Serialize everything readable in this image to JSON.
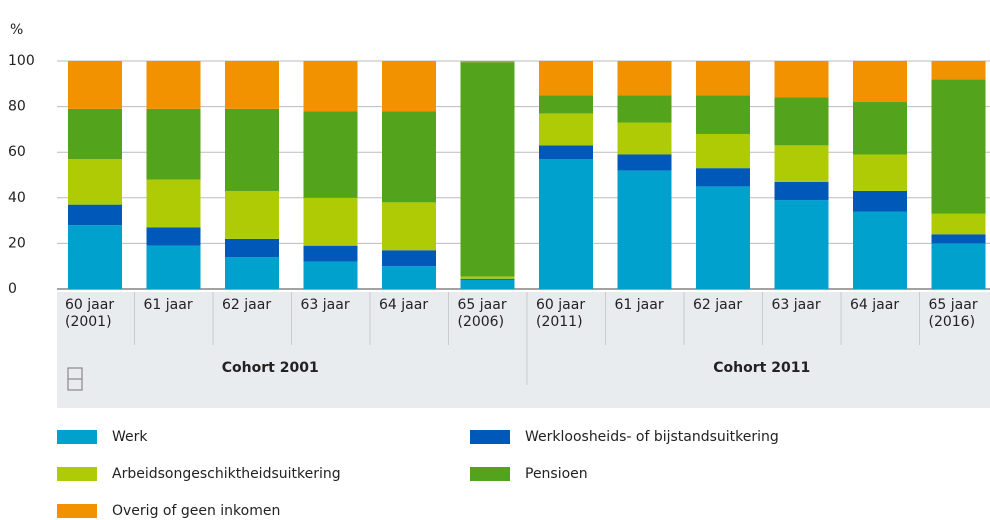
{
  "chart_data": {
    "type": "stacked_bar",
    "y_label": "%",
    "categories": [
      "60 jaar (2001)",
      "61 jaar",
      "62 jaar",
      "63 jaar",
      "64 jaar",
      "65 jaar (2006)",
      "60 jaar (2011)",
      "61 jaar",
      "62 jaar",
      "63 jaar",
      "64 jaar",
      "65 jaar (2016)"
    ],
    "groups": [
      "Cohort 2001",
      "Cohort 2011"
    ],
    "series": [
      {
        "name": "Werk",
        "color": "#00a1cd",
        "values": [
          28,
          19,
          14,
          12,
          10,
          4,
          57,
          52,
          45,
          39,
          34,
          20
        ]
      },
      {
        "name": "Werkloosheids- of bijstandsuitkering",
        "color": "#0058b8",
        "values": [
          9,
          8,
          8,
          7,
          7,
          0.5,
          6,
          7,
          8,
          8,
          9,
          4
        ]
      },
      {
        "name": "Arbeidsongeschiktheidsuitkering",
        "color": "#afcb05",
        "values": [
          20,
          21,
          21,
          21,
          21,
          1,
          14,
          14,
          15,
          16,
          16,
          9
        ]
      },
      {
        "name": "Pensioen",
        "color": "#53a31d",
        "values": [
          22,
          31,
          36,
          38,
          40,
          94,
          8,
          12,
          17,
          21,
          23,
          59
        ]
      },
      {
        "name": "Overig of geen inkomen",
        "color": "#f39200",
        "values": [
          21,
          21,
          21,
          22,
          22,
          0.5,
          15,
          15,
          15,
          16,
          18,
          8
        ]
      }
    ],
    "ylim": [
      0,
      100
    ],
    "yticks": [
      0,
      20,
      40,
      60,
      80,
      100
    ],
    "grid": true
  }
}
